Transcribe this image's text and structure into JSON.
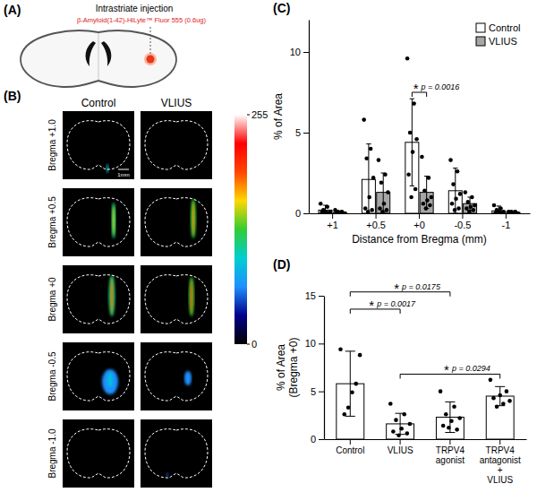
{
  "panel_a": {
    "label": "(A)",
    "title": "Intrastriate injection",
    "subtitle": "β-Amyloid(1-42)-HiLyte™ Fluor 555 (0.6ug)"
  },
  "panel_b": {
    "label": "(B)",
    "columns": [
      "Control",
      "VLIUS"
    ],
    "rows": [
      "Bregma +1.0",
      "Bregma +0.5",
      "Bregma +0",
      "Bregma -0.5",
      "Bregma -1.0"
    ],
    "scale_bar": "1mm",
    "colorbar": {
      "range": [
        0,
        255
      ],
      "ticks": [
        0,
        255
      ],
      "colors": [
        "#000000",
        "#00008b",
        "#1e90ff",
        "#00ced1",
        "#32cd32",
        "#ffd700",
        "#ff4500",
        "#ff0000",
        "#ffffff"
      ]
    }
  },
  "chart_data": [
    {
      "type": "bar",
      "panel": "(C)",
      "x_label": "Distance from Bregma (mm)",
      "y_label": "% of Area",
      "categories": [
        "+1",
        "+0.5",
        "+0",
        "-0.5",
        "-1"
      ],
      "series": [
        {
          "name": "Control",
          "color": "#ffffff",
          "values": [
            0.2,
            2.1,
            4.4,
            1.4,
            0.15
          ],
          "errors": [
            0.3,
            2.2,
            2.7,
            1.4,
            0.3
          ],
          "points": [
            [
              0.6,
              0.4,
              0.2,
              0.1,
              0.1,
              0.1,
              0.0,
              0.0
            ],
            [
              5.8,
              4.0,
              3.4,
              2.2,
              1.0,
              0.3,
              0.2,
              0.1
            ],
            [
              9.6,
              6.8,
              5.0,
              4.6,
              3.8,
              2.4,
              1.5,
              1.0
            ],
            [
              3.3,
              2.6,
              1.8,
              1.2,
              0.9,
              0.6,
              0.3,
              0.2
            ],
            [
              0.5,
              0.3,
              0.2,
              0.1,
              0.1,
              0.0,
              0.0,
              0.0
            ]
          ]
        },
        {
          "name": "VLIUS",
          "color": "#a6a6a6",
          "values": [
            0.05,
            1.3,
            1.3,
            0.6,
            0.05
          ],
          "errors": [
            0.1,
            1.2,
            1.0,
            0.4,
            0.1
          ],
          "points": [
            [
              0.2,
              0.1,
              0.1,
              0.0,
              0.0,
              0.0,
              0.0,
              0.0
            ],
            [
              3.3,
              2.4,
              1.9,
              1.3,
              0.6,
              0.3,
              0.2,
              0.1
            ],
            [
              3.5,
              2.2,
              1.4,
              1.0,
              0.8,
              0.6,
              0.5,
              0.3
            ],
            [
              1.3,
              1.0,
              0.7,
              0.5,
              0.4,
              0.3,
              0.2,
              0.1
            ],
            [
              0.1,
              0.1,
              0.1,
              0.0,
              0.0,
              0.0,
              0.0,
              0.0
            ]
          ]
        }
      ],
      "ylim": [
        0,
        12
      ],
      "yticks": [
        0,
        5,
        10
      ],
      "legend": "top-right",
      "annotations": [
        {
          "category": "+0",
          "y": 7.5,
          "star": "*",
          "text": "p = 0.0016"
        }
      ]
    },
    {
      "type": "bar",
      "panel": "(D)",
      "y_label": [
        "% of Area",
        "(Bregma +0)"
      ],
      "categories": [
        "Control",
        "VLIUS",
        "TRPV4\nagonist",
        "TRPV4\nantagonist\n+\nVLIUS"
      ],
      "color": "#ffffff",
      "values": [
        5.8,
        1.6,
        2.3,
        4.5
      ],
      "errors": [
        3.4,
        1.1,
        1.6,
        1.0
      ],
      "points": [
        [
          9.4,
          8.8,
          5.8,
          4.9,
          3.3,
          2.6
        ],
        [
          3.7,
          2.6,
          2.0,
          1.6,
          1.1,
          0.8,
          0.6,
          0.4
        ],
        [
          5.0,
          3.4,
          2.6,
          2.2,
          1.9,
          1.4,
          1.0,
          1.2
        ],
        [
          6.2,
          5.0,
          4.6,
          4.3,
          4.0,
          3.7,
          3.4
        ]
      ],
      "ylim": [
        0,
        15
      ],
      "yticks": [
        0,
        5,
        10,
        15
      ],
      "annotations": [
        {
          "from": "Control",
          "to": "VLIUS",
          "y": 13.6,
          "star": "*",
          "text": "p = 0.0017"
        },
        {
          "from": "Control",
          "to": "TRPV4\nagonist",
          "y": 15.4,
          "star": "*",
          "text": "p = 0.0175"
        },
        {
          "from": "VLIUS",
          "to": "TRPV4\nantagonist\n+\nVLIUS",
          "y": 6.8,
          "star": "*",
          "text": "p = 0.0294"
        }
      ]
    }
  ]
}
